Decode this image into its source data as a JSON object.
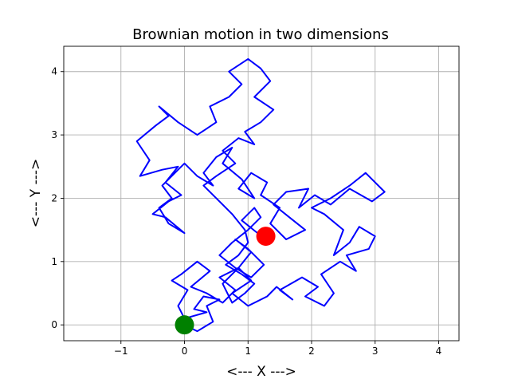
{
  "chart_data": {
    "type": "line",
    "title": "Brownian motion in two dimensions",
    "xlabel": "<--- X --->",
    "ylabel": "<--- Y --->",
    "xlim": [
      -1.9,
      4.32
    ],
    "ylim": [
      -0.25,
      4.4
    ],
    "xticks": [
      -1,
      0,
      1,
      2,
      3,
      4
    ],
    "yticks": [
      0,
      1,
      2,
      3,
      4
    ],
    "grid": true,
    "series": [
      {
        "color": "#0000ff",
        "x": [
          0.0,
          0.2,
          0.45,
          0.35,
          0.55,
          0.3,
          0.15,
          0.35,
          0.0,
          -0.1,
          0.05,
          -0.2,
          -0.05,
          0.2,
          0.4,
          0.1,
          0.35,
          0.6,
          0.8,
          0.55,
          0.85,
          1.05,
          0.75,
          1.0,
          1.3,
          1.45,
          1.7,
          1.5,
          1.85,
          2.1,
          1.9,
          2.2,
          2.35,
          2.15,
          2.45,
          2.7,
          2.55,
          2.9,
          3.0,
          2.75,
          2.6,
          2.35,
          2.5,
          2.2,
          2.0,
          2.3,
          2.6,
          2.85,
          3.15,
          2.95,
          2.6,
          2.3,
          2.05,
          1.8,
          1.95,
          1.6,
          1.4,
          1.65,
          1.9,
          1.6,
          1.35,
          1.5,
          1.2,
          1.3,
          1.05,
          0.85,
          1.1,
          0.9,
          0.6,
          0.75,
          0.5,
          0.3,
          0.45,
          0.2,
          0.0,
          -0.15,
          -0.35,
          -0.2,
          -0.4,
          -0.25,
          0.0,
          -0.3,
          -0.5,
          -0.25,
          -0.05,
          -0.3,
          -0.1,
          -0.35,
          -0.7,
          -0.55,
          -0.75,
          -0.45,
          -0.25,
          -0.4,
          -0.1,
          0.2,
          0.5,
          0.4,
          0.7,
          0.9,
          0.7,
          1.0,
          1.2,
          1.35,
          1.1,
          1.4,
          1.2,
          0.95,
          1.1,
          0.85,
          0.6,
          0.8,
          0.5,
          0.3,
          0.55,
          0.75,
          0.95,
          1.0,
          0.85,
          0.65,
          0.9,
          1.1,
          0.95,
          0.75,
          0.6,
          0.85,
          1.05,
          0.8,
          1.0,
          1.25,
          1.05,
          0.8,
          0.55,
          0.75,
          1.0,
          1.2,
          1.1,
          0.9,
          1.15,
          1.28
        ],
        "y": [
          0.0,
          -0.1,
          0.05,
          0.3,
          0.4,
          0.45,
          0.25,
          0.2,
          0.1,
          0.3,
          0.55,
          0.7,
          0.8,
          1.0,
          0.85,
          0.6,
          0.5,
          0.35,
          0.55,
          0.75,
          0.9,
          0.7,
          0.5,
          0.3,
          0.45,
          0.6,
          0.4,
          0.55,
          0.75,
          0.6,
          0.45,
          0.3,
          0.5,
          0.8,
          1.0,
          0.85,
          1.1,
          1.2,
          1.4,
          1.55,
          1.3,
          1.1,
          1.5,
          1.75,
          1.85,
          2.0,
          2.2,
          2.4,
          2.1,
          1.95,
          2.15,
          1.9,
          2.05,
          1.85,
          2.15,
          2.1,
          1.9,
          1.7,
          1.5,
          1.35,
          1.6,
          1.85,
          2.05,
          2.25,
          2.4,
          2.15,
          2.0,
          2.3,
          2.55,
          2.8,
          2.65,
          2.4,
          2.2,
          2.35,
          2.55,
          2.4,
          2.2,
          2.0,
          1.85,
          1.6,
          1.45,
          1.7,
          1.75,
          1.95,
          2.05,
          2.25,
          2.5,
          2.45,
          2.35,
          2.6,
          2.9,
          3.15,
          3.3,
          3.45,
          3.2,
          3.0,
          3.2,
          3.45,
          3.6,
          3.8,
          4.0,
          4.2,
          4.05,
          3.85,
          3.6,
          3.4,
          3.2,
          3.05,
          2.85,
          2.95,
          2.75,
          2.55,
          2.35,
          2.2,
          1.95,
          1.75,
          1.5,
          1.3,
          1.1,
          0.95,
          0.8,
          0.65,
          0.5,
          0.35,
          0.65,
          0.9,
          1.15,
          1.35,
          1.2,
          0.95,
          0.75,
          0.9,
          1.1,
          1.3,
          1.5,
          1.7,
          1.85,
          1.65,
          1.45,
          1.4
        ]
      }
    ],
    "markers": [
      {
        "x": 0,
        "y": 0,
        "color": "#008000"
      },
      {
        "x": 1.28,
        "y": 1.4,
        "color": "#ff0000"
      }
    ]
  }
}
